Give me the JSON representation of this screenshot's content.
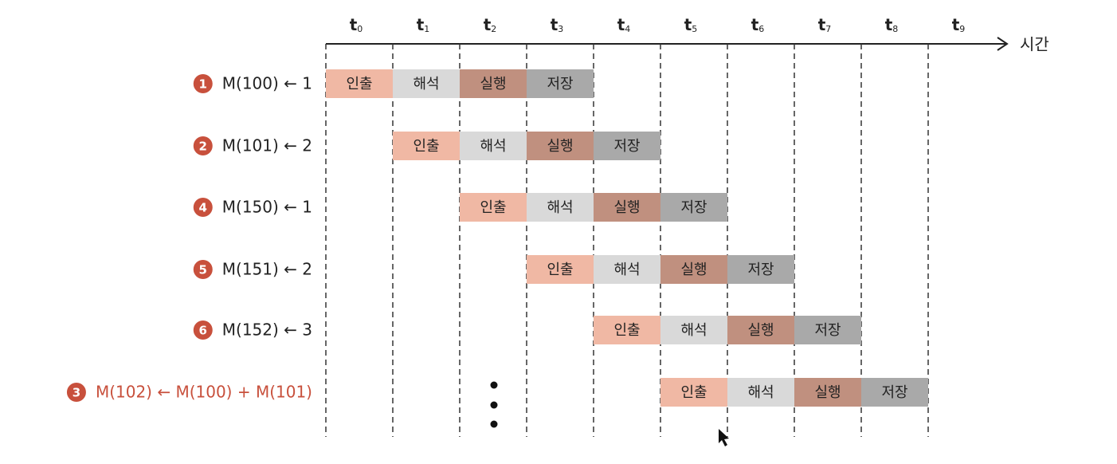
{
  "time_axis": {
    "label": "시간",
    "ticks": [
      {
        "base": "t",
        "sub": "0"
      },
      {
        "base": "t",
        "sub": "1"
      },
      {
        "base": "t",
        "sub": "2"
      },
      {
        "base": "t",
        "sub": "3"
      },
      {
        "base": "t",
        "sub": "4"
      },
      {
        "base": "t",
        "sub": "5"
      },
      {
        "base": "t",
        "sub": "6"
      },
      {
        "base": "t",
        "sub": "7"
      },
      {
        "base": "t",
        "sub": "8"
      },
      {
        "base": "t",
        "sub": "9"
      }
    ]
  },
  "stages": [
    {
      "label": "인출",
      "color": "#f0b8a4"
    },
    {
      "label": "해석",
      "color": "#d9d9d9"
    },
    {
      "label": "실행",
      "color": "#c0907f"
    },
    {
      "label": "저장",
      "color": "#a9a9a9"
    }
  ],
  "rows": [
    {
      "badge": "1",
      "instruction": "M(100) ← 1",
      "color": "#222222"
    },
    {
      "badge": "2",
      "instruction": "M(101) ← 2",
      "color": "#222222"
    },
    {
      "badge": "4",
      "instruction": "M(150) ← 1",
      "color": "#222222"
    },
    {
      "badge": "5",
      "instruction": "M(151) ← 2",
      "color": "#222222"
    },
    {
      "badge": "6",
      "instruction": "M(152) ← 3",
      "color": "#222222"
    },
    {
      "badge": "3",
      "instruction": "M(102) ← M(100) + M(101)",
      "color": "#c8503c"
    }
  ]
}
